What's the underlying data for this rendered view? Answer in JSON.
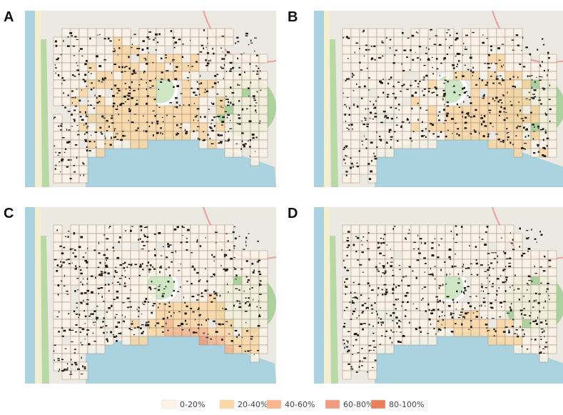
{
  "panels": [
    {
      "label": "A"
    },
    {
      "label": "B"
    },
    {
      "label": "C"
    },
    {
      "label": "D"
    }
  ],
  "legend": {
    "items": [
      {
        "label": "0-20%",
        "color": "#fdf3e6"
      },
      {
        "label": "20-40%",
        "color": "#fbd7a6"
      },
      {
        "label": "40-60%",
        "color": "#f7b68d"
      },
      {
        "label": "60-80%",
        "color": "#f09b7d"
      },
      {
        "label": "80-100%",
        "color": "#e9805b"
      }
    ]
  }
}
